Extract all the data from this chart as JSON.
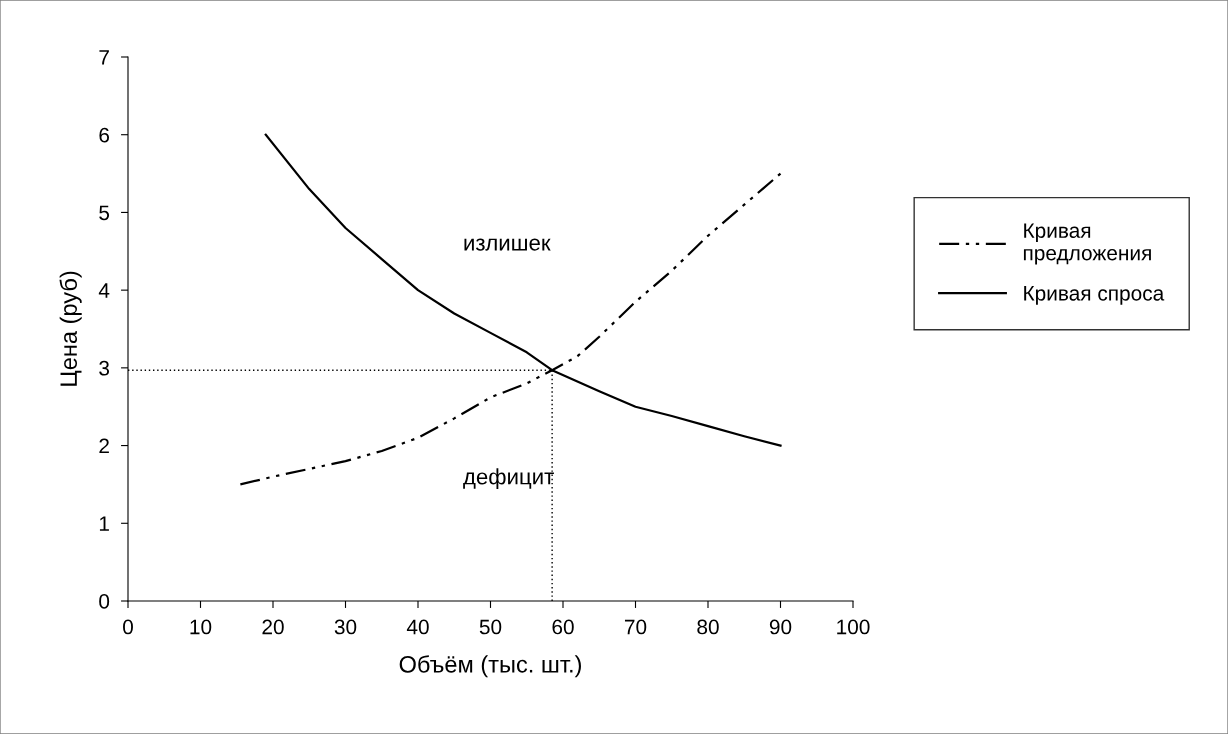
{
  "chart_data": {
    "type": "line",
    "xlabel": "Объём (тыс. шт.)",
    "ylabel": "Цена (руб)",
    "xlim": [
      0,
      100
    ],
    "ylim": [
      0,
      7
    ],
    "xticks": [
      0,
      10,
      20,
      30,
      40,
      50,
      60,
      70,
      80,
      90,
      100
    ],
    "yticks": [
      0,
      1,
      2,
      3,
      4,
      5,
      6,
      7
    ],
    "grid": false,
    "legend": "right",
    "marker": "none",
    "series": [
      {
        "name": "Кривая предложения",
        "color": "#000000",
        "line_style": "dashdotdot",
        "x": [
          15.5,
          20,
          25,
          30,
          35,
          40,
          45,
          50,
          55,
          58.5,
          62,
          65,
          70,
          75,
          80,
          85,
          90
        ],
        "values": [
          1.5,
          1.6,
          1.7,
          1.8,
          1.93,
          2.1,
          2.35,
          2.62,
          2.8,
          2.97,
          3.15,
          3.4,
          3.85,
          4.25,
          4.7,
          5.1,
          5.5
        ]
      },
      {
        "name": "Кривая спроса",
        "color": "#000000",
        "line_style": "solid",
        "x": [
          19,
          25,
          30,
          35,
          40,
          45,
          50,
          55,
          58.5,
          65,
          70,
          75,
          80,
          85,
          90
        ],
        "values": [
          6,
          5.3,
          4.8,
          4.4,
          4.0,
          3.7,
          3.45,
          3.2,
          2.97,
          2.7,
          2.5,
          2.38,
          2.25,
          2.12,
          2.0
        ]
      },
      {
        "color": "#000000",
        "line_style": "dotted",
        "x": [
          0,
          58.5
        ],
        "values": [
          2.97,
          2.97
        ]
      },
      {
        "color": "#000000",
        "line_style": "dotted",
        "x": [
          58.5,
          58.5
        ],
        "values": [
          0,
          2.97
        ]
      }
    ],
    "annotations": [
      "излишек",
      "дефицит"
    ]
  }
}
